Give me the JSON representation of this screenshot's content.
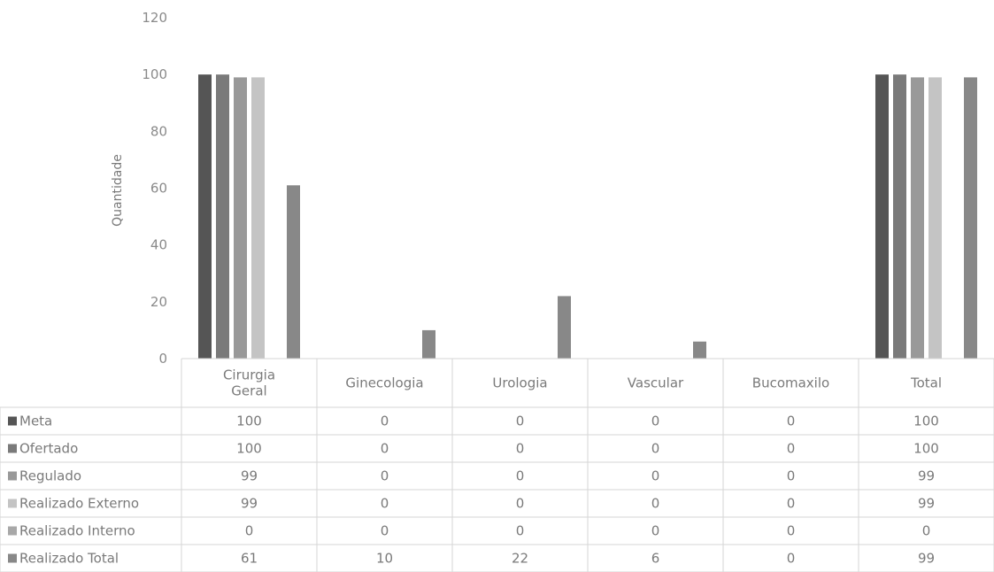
{
  "chart_data": {
    "type": "bar",
    "ylabel": "Quantidade",
    "ylim": [
      0,
      120
    ],
    "yticks": [
      0,
      20,
      40,
      60,
      80,
      100,
      120
    ],
    "categories": [
      [
        "Cirurgia",
        "Geral"
      ],
      [
        "Ginecologia"
      ],
      [
        "Urologia"
      ],
      [
        "Vascular"
      ],
      [
        "Bucomaxilo"
      ],
      [
        "Total"
      ]
    ],
    "series": [
      {
        "name": "Meta",
        "color": "#555555",
        "values": [
          100,
          0,
          0,
          0,
          0,
          100
        ]
      },
      {
        "name": "Ofertado",
        "color": "#7a7a7a",
        "values": [
          100,
          0,
          0,
          0,
          0,
          100
        ]
      },
      {
        "name": "Regulado",
        "color": "#999999",
        "values": [
          99,
          0,
          0,
          0,
          0,
          99
        ]
      },
      {
        "name": "Realizado Externo",
        "color": "#c4c4c4",
        "values": [
          99,
          0,
          0,
          0,
          0,
          99
        ]
      },
      {
        "name": "Realizado Interno",
        "color": "#a8a8a8",
        "values": [
          0,
          0,
          0,
          0,
          0,
          0
        ]
      },
      {
        "name": "Realizado Total",
        "color": "#888888",
        "values": [
          61,
          10,
          22,
          6,
          0,
          99
        ]
      }
    ],
    "grid": false,
    "legend": "data-table"
  }
}
